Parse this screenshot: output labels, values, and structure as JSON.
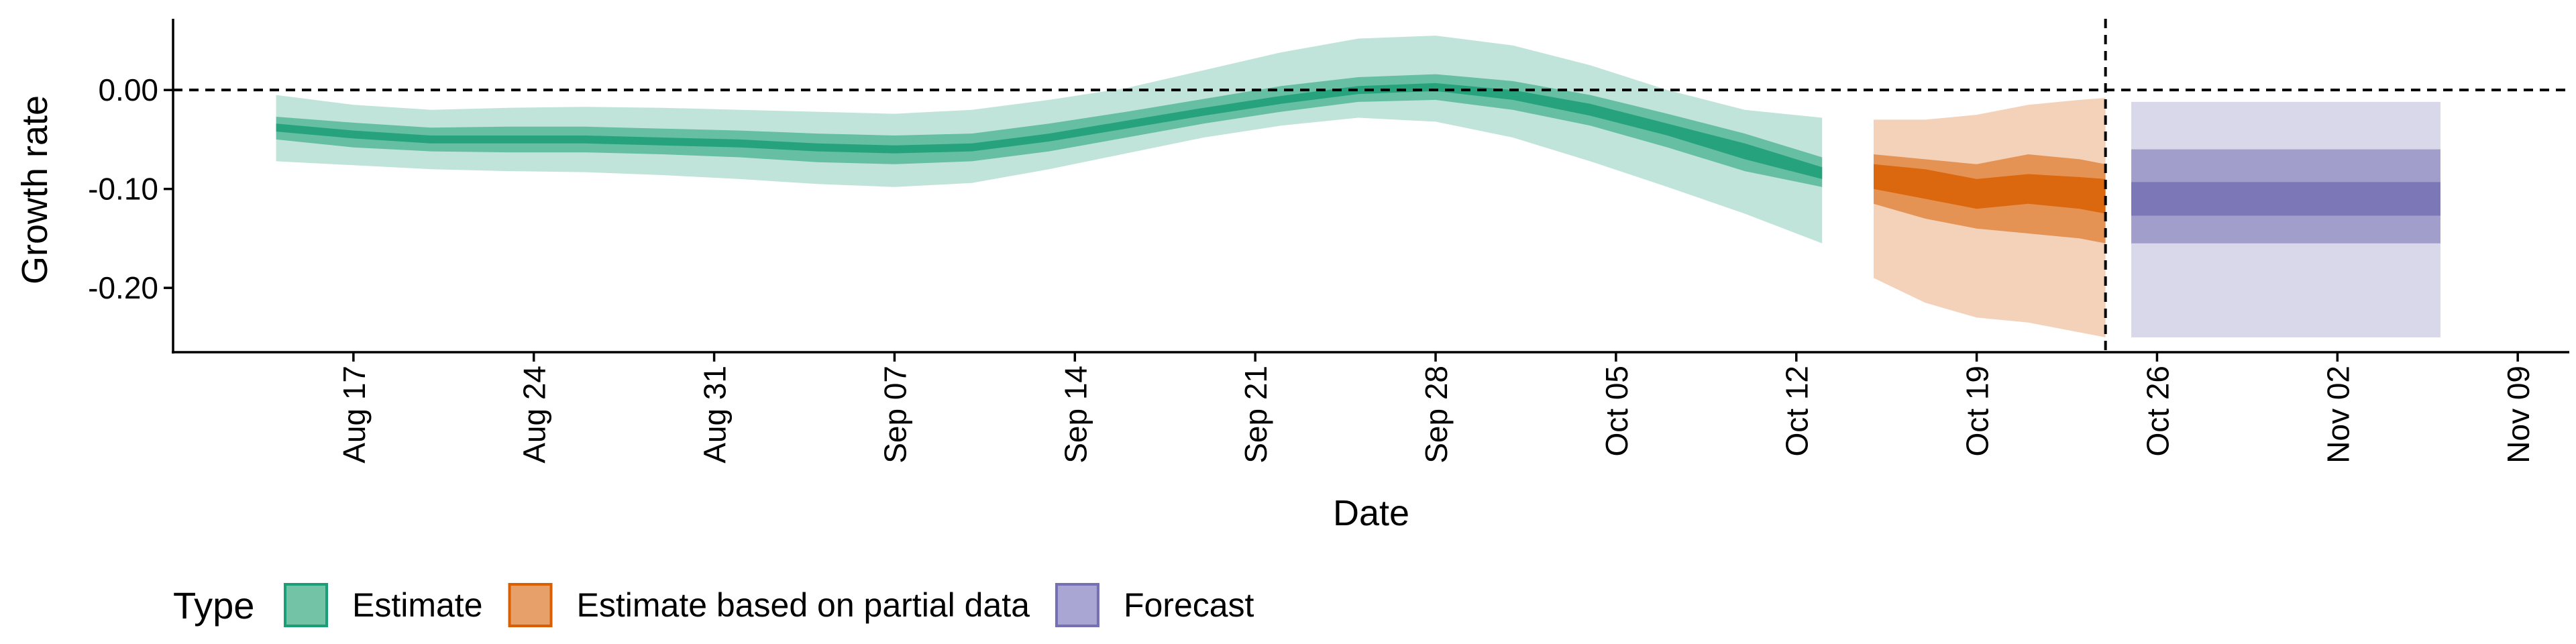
{
  "chart_data": {
    "type": "area",
    "xlabel": "Date",
    "ylabel": "Growth rate",
    "x_ticks": [
      "Aug 17",
      "Aug 24",
      "Aug 31",
      "Sep 07",
      "Sep 14",
      "Sep 21",
      "Sep 28",
      "Oct 05",
      "Oct 12",
      "Oct 19",
      "Oct 26",
      "Nov 02",
      "Nov 09"
    ],
    "x_tick_dates": [
      "2020-08-17",
      "2020-08-24",
      "2020-08-31",
      "2020-09-07",
      "2020-09-14",
      "2020-09-21",
      "2020-09-28",
      "2020-10-05",
      "2020-10-12",
      "2020-10-19",
      "2020-10-26",
      "2020-11-02",
      "2020-11-09"
    ],
    "xlim": [
      "2020-08-10",
      "2020-11-11"
    ],
    "y_ticks": [
      0.0,
      -0.1,
      -0.2
    ],
    "y_tick_labels": [
      "0.00",
      "-0.10",
      "-0.20"
    ],
    "ylim": [
      -0.265,
      0.072
    ],
    "reference_lines": {
      "horizontal_y": 0.0,
      "vertical_x": "2020-10-24"
    },
    "grid": false,
    "legend": {
      "title": "Type",
      "position": "bottom-left",
      "items": [
        {
          "label": "Estimate",
          "fill": "#73c3a6",
          "stroke": "#1b9e77"
        },
        {
          "label": "Estimate based on partial data",
          "fill": "#e8a06a",
          "stroke": "#d95f02"
        },
        {
          "label": "Forecast",
          "fill": "#aaa6d4",
          "stroke": "#7570b3"
        }
      ]
    },
    "series": [
      {
        "name": "Estimate",
        "color": "#1b9e77",
        "x": [
          "2020-08-14",
          "2020-08-17",
          "2020-08-20",
          "2020-08-23",
          "2020-08-26",
          "2020-08-29",
          "2020-09-01",
          "2020-09-04",
          "2020-09-07",
          "2020-09-10",
          "2020-09-13",
          "2020-09-16",
          "2020-09-19",
          "2020-09-22",
          "2020-09-25",
          "2020-09-28",
          "2020-10-01",
          "2020-10-04",
          "2020-10-07",
          "2020-10-10",
          "2020-10-13"
        ],
        "median": [
          -0.038,
          -0.045,
          -0.05,
          -0.05,
          -0.05,
          -0.052,
          -0.054,
          -0.058,
          -0.06,
          -0.058,
          -0.048,
          -0.035,
          -0.022,
          -0.01,
          0.0,
          0.003,
          -0.005,
          -0.02,
          -0.04,
          -0.062,
          -0.085
        ],
        "lower_90": [
          -0.072,
          -0.076,
          -0.08,
          -0.082,
          -0.083,
          -0.086,
          -0.09,
          -0.095,
          -0.098,
          -0.094,
          -0.08,
          -0.064,
          -0.048,
          -0.036,
          -0.028,
          -0.032,
          -0.048,
          -0.072,
          -0.098,
          -0.125,
          -0.155
        ],
        "upper_90": [
          -0.005,
          -0.015,
          -0.02,
          -0.018,
          -0.017,
          -0.018,
          -0.02,
          -0.022,
          -0.024,
          -0.02,
          -0.01,
          0.002,
          0.02,
          0.038,
          0.052,
          0.055,
          0.045,
          0.025,
          0.0,
          -0.02,
          -0.028
        ],
        "lower_50": [
          -0.05,
          -0.058,
          -0.062,
          -0.063,
          -0.063,
          -0.065,
          -0.068,
          -0.073,
          -0.075,
          -0.072,
          -0.062,
          -0.048,
          -0.034,
          -0.022,
          -0.012,
          -0.01,
          -0.02,
          -0.036,
          -0.058,
          -0.082,
          -0.098
        ],
        "upper_50": [
          -0.027,
          -0.033,
          -0.038,
          -0.037,
          -0.037,
          -0.039,
          -0.041,
          -0.044,
          -0.046,
          -0.044,
          -0.034,
          -0.022,
          -0.009,
          0.004,
          0.013,
          0.016,
          0.009,
          -0.005,
          -0.024,
          -0.044,
          -0.068
        ],
        "lower_20": [
          -0.042,
          -0.049,
          -0.054,
          -0.054,
          -0.054,
          -0.056,
          -0.058,
          -0.062,
          -0.064,
          -0.062,
          -0.052,
          -0.039,
          -0.026,
          -0.014,
          -0.004,
          -0.001,
          -0.01,
          -0.026,
          -0.046,
          -0.07,
          -0.09
        ],
        "upper_20": [
          -0.034,
          -0.041,
          -0.046,
          -0.046,
          -0.046,
          -0.048,
          -0.05,
          -0.054,
          -0.056,
          -0.054,
          -0.044,
          -0.031,
          -0.018,
          -0.006,
          0.004,
          0.007,
          0.0,
          -0.014,
          -0.034,
          -0.054,
          -0.078
        ]
      },
      {
        "name": "Estimate based on partial data",
        "color": "#d95f02",
        "x": [
          "2020-10-15",
          "2020-10-17",
          "2020-10-19",
          "2020-10-21",
          "2020-10-23",
          "2020-10-24"
        ],
        "median": [
          -0.085,
          -0.095,
          -0.105,
          -0.1,
          -0.105,
          -0.11
        ],
        "lower_90": [
          -0.19,
          -0.215,
          -0.23,
          -0.235,
          -0.245,
          -0.25
        ],
        "upper_90": [
          -0.03,
          -0.03,
          -0.025,
          -0.015,
          -0.01,
          -0.008
        ],
        "lower_50": [
          -0.115,
          -0.13,
          -0.14,
          -0.145,
          -0.15,
          -0.155
        ],
        "upper_50": [
          -0.065,
          -0.07,
          -0.075,
          -0.065,
          -0.07,
          -0.075
        ],
        "lower_20": [
          -0.1,
          -0.11,
          -0.12,
          -0.115,
          -0.12,
          -0.125
        ],
        "upper_20": [
          -0.075,
          -0.08,
          -0.09,
          -0.085,
          -0.088,
          -0.09
        ]
      },
      {
        "name": "Forecast",
        "color": "#7570b3",
        "x": [
          "2020-10-25",
          "2020-11-06"
        ],
        "median": [
          -0.11,
          -0.11
        ],
        "lower_90": [
          -0.25,
          -0.25
        ],
        "upper_90": [
          -0.012,
          -0.012
        ],
        "lower_50": [
          -0.155,
          -0.155
        ],
        "upper_50": [
          -0.06,
          -0.06
        ],
        "lower_20": [
          -0.127,
          -0.127
        ],
        "upper_20": [
          -0.093,
          -0.093
        ]
      }
    ]
  }
}
